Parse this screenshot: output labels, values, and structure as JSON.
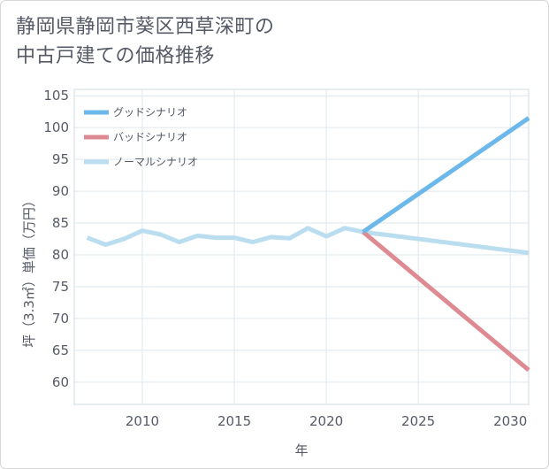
{
  "chart_data": {
    "type": "line",
    "title_line1": "静岡県静岡市葵区西草深町の",
    "title_line2": "中古戸建ての価格推移",
    "xlabel": "年",
    "ylabel": "坪（3.3㎡）単価（万円）",
    "xlim": [
      2006.3,
      2031
    ],
    "ylim": [
      56.5,
      106
    ],
    "x_ticks": [
      2010,
      2015,
      2020,
      2025,
      2030
    ],
    "y_ticks": [
      60,
      65,
      70,
      75,
      80,
      85,
      90,
      95,
      100,
      105
    ],
    "legend_position": "top-left",
    "series": [
      {
        "name": "グッドシナリオ",
        "color": "#6cb8ea",
        "points": [
          [
            2022,
            83.6
          ],
          [
            2031,
            101.5
          ]
        ]
      },
      {
        "name": "バッドシナリオ",
        "color": "#de8a93",
        "points": [
          [
            2022,
            83.6
          ],
          [
            2031,
            61.9
          ]
        ]
      },
      {
        "name": "ノーマルシナリオ",
        "color": "#badeef",
        "points": [
          [
            2007,
            82.7
          ],
          [
            2008,
            81.6
          ],
          [
            2009,
            82.5
          ],
          [
            2010,
            83.8
          ],
          [
            2011,
            83.2
          ],
          [
            2012,
            82.0
          ],
          [
            2013,
            83.0
          ],
          [
            2014,
            82.7
          ],
          [
            2015,
            82.7
          ],
          [
            2016,
            82.0
          ],
          [
            2017,
            82.8
          ],
          [
            2018,
            82.6
          ],
          [
            2019,
            84.2
          ],
          [
            2020,
            82.9
          ],
          [
            2021,
            84.2
          ],
          [
            2022,
            83.6
          ],
          [
            2031,
            80.3
          ]
        ]
      }
    ]
  }
}
